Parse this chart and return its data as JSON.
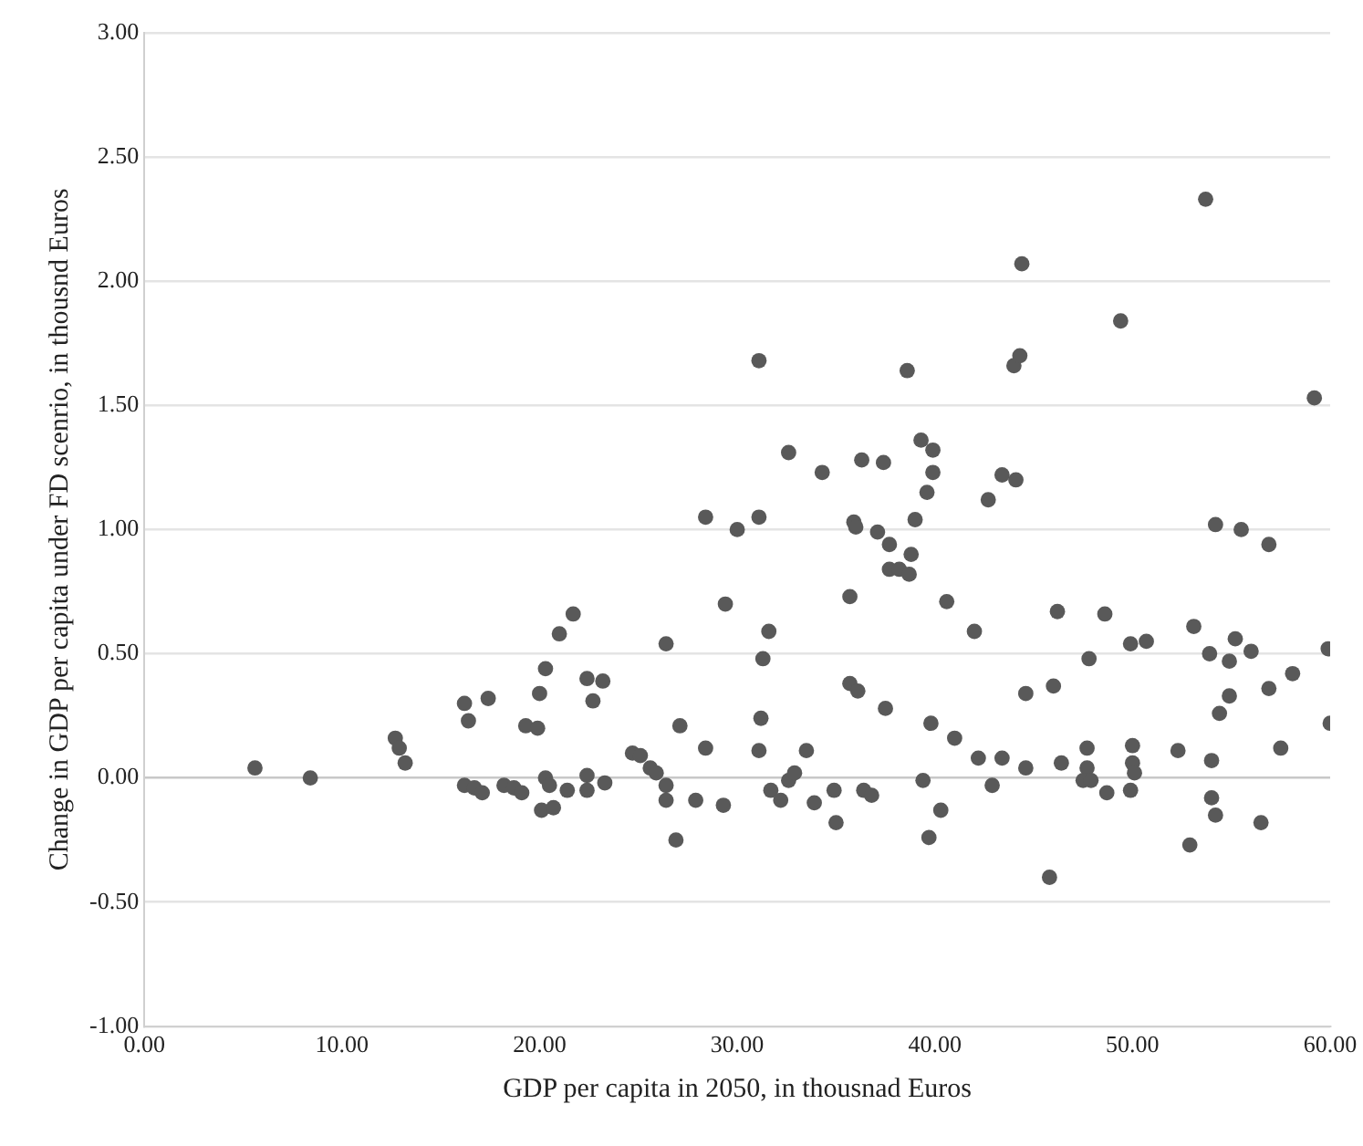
{
  "chart_data": {
    "type": "scatter",
    "xlabel": "GDP per capita in 2050, in thousnad Euros",
    "ylabel": "Change in GDP per capita under FD scenrio, in thousnd Euros",
    "xlim": [
      0,
      60
    ],
    "ylim": [
      -1,
      3
    ],
    "xticks": [
      {
        "value": 0,
        "label": "0.00"
      },
      {
        "value": 10,
        "label": "10.00"
      },
      {
        "value": 20,
        "label": "20.00"
      },
      {
        "value": 30,
        "label": "30.00"
      },
      {
        "value": 40,
        "label": "40.00"
      },
      {
        "value": 50,
        "label": "50.00"
      },
      {
        "value": 60,
        "label": "60.00"
      }
    ],
    "yticks": [
      {
        "value": -1,
        "label": "-1.00"
      },
      {
        "value": -0.5,
        "label": "-0.50"
      },
      {
        "value": 0,
        "label": "0.00"
      },
      {
        "value": 0.5,
        "label": "0.50"
      },
      {
        "value": 1,
        "label": "1.00"
      },
      {
        "value": 1.5,
        "label": "1.50"
      },
      {
        "value": 2,
        "label": "2.00"
      },
      {
        "value": 2.5,
        "label": "2.50"
      },
      {
        "value": 3,
        "label": "3.00"
      }
    ],
    "grid": "y",
    "marker": "circle",
    "legend": false,
    "series": [
      {
        "color": "#595959",
        "x": [
          5.6,
          8.4,
          12.7,
          12.9,
          13.2,
          16.2,
          16.4,
          17.4,
          16.2,
          16.7,
          17.1,
          18.2,
          18.7,
          19.1,
          19.3,
          19.9,
          20.0,
          20.3,
          21.0,
          21.7,
          20.1,
          20.7,
          20.3,
          20.5,
          21.4,
          22.4,
          22.4,
          22.4,
          22.7,
          23.2,
          23.3,
          24.7,
          25.1,
          25.6,
          25.9,
          26.4,
          26.4,
          26.4,
          26.9,
          27.1,
          27.9,
          28.4,
          28.4,
          29.3,
          29.4,
          30.0,
          31.1,
          31.1,
          31.3,
          31.6,
          31.2,
          31.1,
          31.7,
          32.2,
          32.6,
          32.6,
          32.9,
          33.5,
          33.9,
          34.3,
          34.9,
          35.0,
          35.7,
          35.7,
          36.1,
          35.9,
          36.0,
          36.3,
          36.4,
          36.8,
          37.1,
          37.4,
          37.5,
          37.7,
          37.7,
          38.2,
          38.7,
          38.8,
          38.6,
          39.0,
          39.3,
          39.6,
          39.9,
          39.9,
          39.4,
          39.8,
          39.7,
          40.3,
          40.6,
          41.0,
          42.0,
          42.2,
          42.7,
          42.9,
          43.4,
          43.4,
          44.1,
          44.0,
          44.3,
          44.4,
          44.6,
          44.6,
          45.8,
          46.0,
          46.2,
          46.4,
          47.7,
          47.8,
          47.7,
          47.5,
          47.9,
          48.6,
          48.7,
          49.4,
          49.9,
          50.0,
          50.0,
          50.1,
          49.9,
          50.7,
          52.3,
          52.9,
          53.1,
          53.7,
          53.9,
          54.0,
          54.2,
          54.0,
          54.2,
          54.4,
          54.9,
          54.9,
          55.2,
          55.5,
          56.0,
          56.5,
          56.9,
          56.9,
          57.5,
          58.1,
          59.2,
          59.9,
          60.0
        ],
        "values": [
          0.04,
          0.0,
          0.16,
          0.12,
          0.06,
          0.3,
          0.23,
          0.32,
          -0.03,
          -0.04,
          -0.06,
          -0.03,
          -0.04,
          -0.06,
          0.21,
          0.2,
          0.34,
          0.44,
          0.58,
          0.66,
          -0.13,
          -0.12,
          0.0,
          -0.03,
          -0.05,
          0.01,
          -0.05,
          0.4,
          0.31,
          0.39,
          -0.02,
          0.1,
          0.09,
          0.04,
          0.02,
          -0.03,
          -0.09,
          0.54,
          -0.25,
          0.21,
          -0.09,
          1.05,
          0.12,
          -0.11,
          0.7,
          1.0,
          1.68,
          1.05,
          0.48,
          0.59,
          0.24,
          0.11,
          -0.05,
          -0.09,
          1.31,
          -0.01,
          0.02,
          0.11,
          -0.1,
          1.23,
          -0.05,
          -0.18,
          0.73,
          0.38,
          0.35,
          1.03,
          1.01,
          1.28,
          -0.05,
          -0.07,
          0.99,
          1.27,
          0.28,
          0.94,
          0.84,
          0.84,
          0.82,
          0.9,
          1.64,
          1.04,
          1.36,
          1.15,
          1.32,
          1.23,
          -0.01,
          0.22,
          -0.24,
          -0.13,
          0.71,
          0.16,
          0.59,
          0.08,
          1.12,
          -0.03,
          1.22,
          0.08,
          1.2,
          1.66,
          1.7,
          2.07,
          0.34,
          0.04,
          -0.4,
          0.37,
          0.67,
          0.06,
          0.12,
          0.48,
          0.04,
          -0.01,
          -0.01,
          0.66,
          -0.06,
          1.84,
          0.54,
          0.13,
          0.06,
          0.02,
          -0.05,
          0.55,
          0.11,
          -0.27,
          0.61,
          2.33,
          0.5,
          0.07,
          1.02,
          -0.08,
          -0.15,
          0.26,
          0.33,
          0.47,
          0.56,
          1.0,
          0.51,
          -0.18,
          0.94,
          0.36,
          0.12,
          0.42,
          1.53,
          0.52,
          0.22
        ]
      }
    ]
  }
}
